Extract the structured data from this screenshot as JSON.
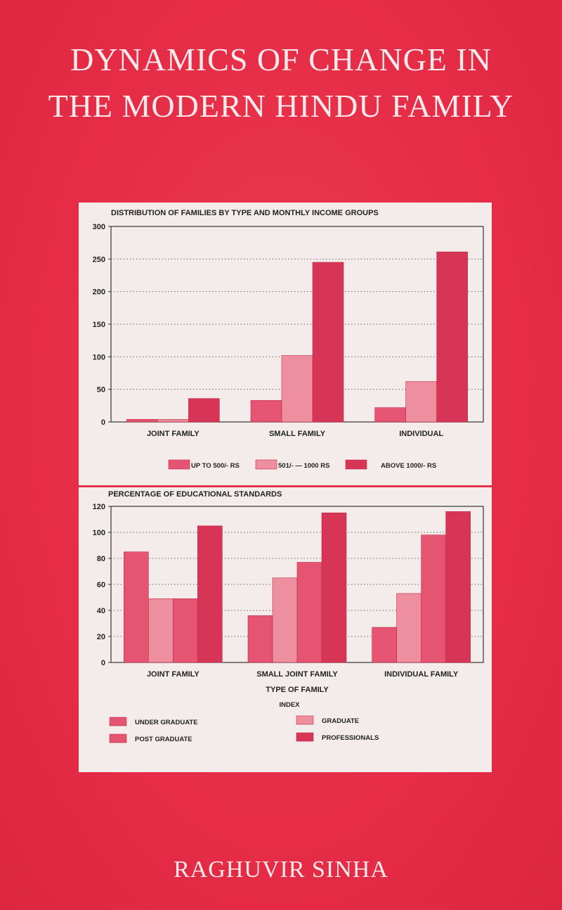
{
  "cover": {
    "title_line1": "DYNAMICS OF CHANGE IN",
    "title_line2": "THE MODERN HINDU FAMILY",
    "author": "RAGHUVIR SINHA"
  },
  "colors": {
    "background": "#e8304a",
    "panel": "#f3ecea",
    "series_light": "#ee8fa0",
    "series_mid": "#e55470",
    "series_dark": "#d63556"
  },
  "chart_data": [
    {
      "type": "bar",
      "title": "DISTRIBUTION OF FAMILIES BY TYPE AND MONTHLY INCOME GROUPS",
      "categories": [
        "JOINT FAMILY",
        "SMALL FAMILY",
        "INDIVIDUAL"
      ],
      "series": [
        {
          "name": "UP TO 500/- RS",
          "values": [
            4,
            33,
            22
          ]
        },
        {
          "name": "501/- — 1000 RS",
          "values": [
            4,
            102,
            62
          ]
        },
        {
          "name": "ABOVE 1000/- RS",
          "values": [
            36,
            245,
            261
          ]
        }
      ],
      "ylim": [
        0,
        300
      ],
      "yticks": [
        "0",
        "50",
        "100",
        "150",
        "200",
        "250",
        "300"
      ],
      "grid": true,
      "legend": "bottom"
    },
    {
      "type": "bar",
      "title": "PERCENTAGE OF EDUCATIONAL STANDARDS",
      "xlabel": "TYPE OF FAMILY",
      "categories": [
        "JOINT FAMILY",
        "SMALL JOINT FAMILY",
        "INDIVIDUAL FAMILY"
      ],
      "series": [
        {
          "name": "UNDER GRADUATE",
          "values": [
            85,
            36,
            27
          ]
        },
        {
          "name": "GRADUATE",
          "values": [
            49,
            65,
            53
          ]
        },
        {
          "name": "POST GRADUATE",
          "values": [
            49,
            77,
            98
          ]
        },
        {
          "name": "PROFESSIONALS",
          "values": [
            105,
            115,
            116
          ]
        }
      ],
      "ylim": [
        0,
        120
      ],
      "yticks": [
        "0",
        "20",
        "40",
        "60",
        "80",
        "100",
        "120"
      ],
      "grid": true,
      "legend_title": "INDEX",
      "legend": "bottom"
    }
  ]
}
